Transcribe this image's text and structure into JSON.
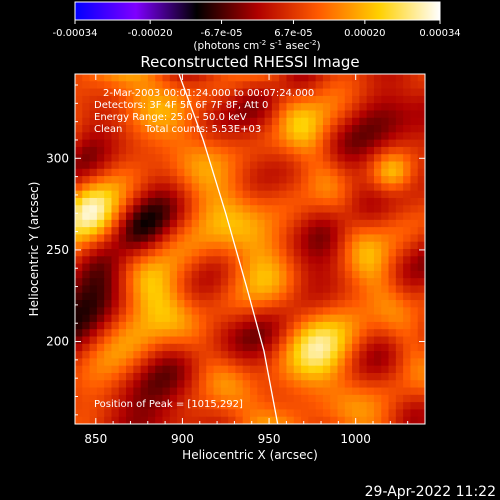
{
  "chart_data": {
    "type": "heatmap",
    "title": "Reconstructed RHESSI Image",
    "colorbar": {
      "ticks": [
        "-0.00034",
        "-0.00020",
        "-6.7e-05",
        "6.7e-05",
        "0.00020",
        "0.00034"
      ],
      "unit_prefix": "(photons cm",
      "unit_sup1": "-2",
      "unit_mid1": " s",
      "unit_sup2": "-1",
      "unit_mid2": " asec",
      "unit_sup3": "-2",
      "unit_suffix": ")",
      "range": [
        -0.00034,
        0.00034
      ],
      "colors": [
        "#0000ff",
        "#7f00ff",
        "#000000",
        "#b00000",
        "#ff5a00",
        "#ffd000",
        "#ffffff"
      ]
    },
    "annotations": {
      "time_range": "2-Mar-2003 00:01:24.000 to 00:07:24.000",
      "detectors": "Detectors: 3F 4F 5F 6F 7F 8F, Att 0",
      "energy_range": "Energy Range: 25.0 - 50.0 keV",
      "method": "Clean",
      "total_counts": "Total counts: 5.53E+03",
      "peak": "Position of Peak = [1015,292]"
    },
    "xlabel": "Heliocentric X (arcsec)",
    "ylabel": "Heliocentric Y (arcsec)",
    "xlim": [
      838,
      1040
    ],
    "ylim": [
      155,
      346
    ],
    "xticks": [
      850,
      900,
      950,
      1000
    ],
    "yticks": [
      200,
      250,
      300
    ],
    "limb_curve": [
      {
        "x": 898,
        "y": 346
      },
      {
        "x": 912,
        "y": 310
      },
      {
        "x": 925,
        "y": 270
      },
      {
        "x": 937,
        "y": 230
      },
      {
        "x": 947,
        "y": 195
      },
      {
        "x": 955,
        "y": 155
      }
    ],
    "peak_position": {
      "x": 1015,
      "y": 292
    },
    "footer_timestamp": "29-Apr-2022 11:22"
  }
}
